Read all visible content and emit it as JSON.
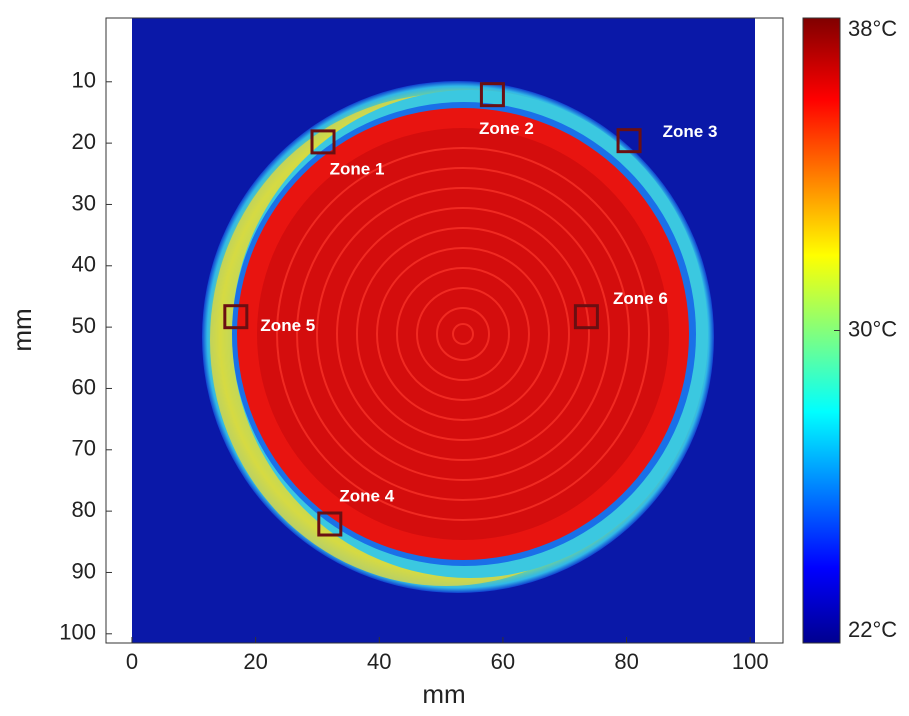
{
  "chart_data": {
    "type": "image",
    "xlabel": "mm",
    "ylabel": "mm",
    "xlim": [
      -4.2,
      105.3
    ],
    "ylim": [
      101.5,
      -0.4
    ],
    "xticks": [
      0,
      20,
      40,
      60,
      80,
      100
    ],
    "yticks": [
      10,
      20,
      30,
      40,
      50,
      60,
      70,
      80,
      90,
      100
    ],
    "zone_color": "#6a0f12",
    "zones": [
      {
        "label": "Zone 1",
        "x": 30.9,
        "y": 19.8
      },
      {
        "label": "Zone 2",
        "x": 58.3,
        "y": 12.1
      },
      {
        "label": "Zone 3",
        "x": 80.4,
        "y": 19.6
      },
      {
        "label": "Zone 4",
        "x": 32.0,
        "y": 82.1
      },
      {
        "label": "Zone 5",
        "x": 16.8,
        "y": 48.3
      },
      {
        "label": "Zone 6",
        "x": 73.5,
        "y": 48.3
      }
    ],
    "colorbar": {
      "clim": [
        22,
        38
      ],
      "ticks": [
        {
          "value": 22,
          "label": "22°C"
        },
        {
          "value": 30,
          "label": "30°C"
        },
        {
          "value": 38,
          "label": "38°C"
        }
      ]
    }
  }
}
